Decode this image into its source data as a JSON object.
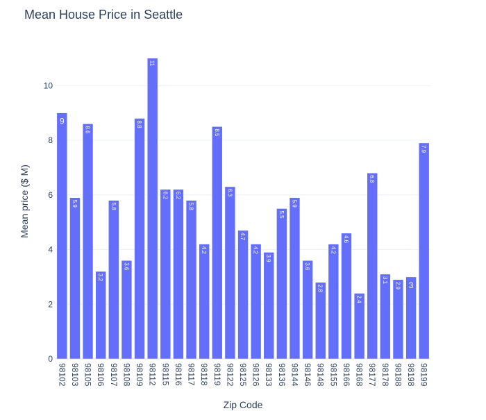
{
  "chart_data": {
    "type": "bar",
    "title": "Mean House Price in Seattle",
    "xlabel": "Zip Code",
    "ylabel": "Mean price ($ M)",
    "ylim": [
      0,
      11.2
    ],
    "yticks": [
      0,
      2,
      4,
      6,
      8,
      10
    ],
    "grid": true,
    "legend": "none",
    "bar_color": "#636efa",
    "categories": [
      "98102",
      "98103",
      "98105",
      "98106",
      "98107",
      "98108",
      "98109",
      "98112",
      "98115",
      "98116",
      "98117",
      "98118",
      "98119",
      "98122",
      "98125",
      "98126",
      "98133",
      "98136",
      "98144",
      "98146",
      "98148",
      "98155",
      "98166",
      "98168",
      "98177",
      "98178",
      "98188",
      "98198",
      "98199"
    ],
    "values": [
      9,
      5.9,
      8.6,
      3.2,
      5.8,
      3.6,
      8.8,
      11,
      6.2,
      6.2,
      5.8,
      4.2,
      8.5,
      6.3,
      4.7,
      4.2,
      3.9,
      5.5,
      5.9,
      3.6,
      2.8,
      4.2,
      4.6,
      2.4,
      6.8,
      3.1,
      2.9,
      3,
      7.9
    ],
    "labels": [
      "9",
      "5.9",
      "8.6",
      "3.2",
      "5.8",
      "3.6",
      "8.8",
      "11",
      "6.2",
      "6.2",
      "5.8",
      "4.2",
      "8.5",
      "6.3",
      "4.7",
      "4.2",
      "3.9",
      "5.5",
      "5.9",
      "3.6",
      "2.8",
      "4.2",
      "4.6",
      "2.4",
      "6.8",
      "3.1",
      "2.9",
      "3",
      "7.9"
    ]
  }
}
